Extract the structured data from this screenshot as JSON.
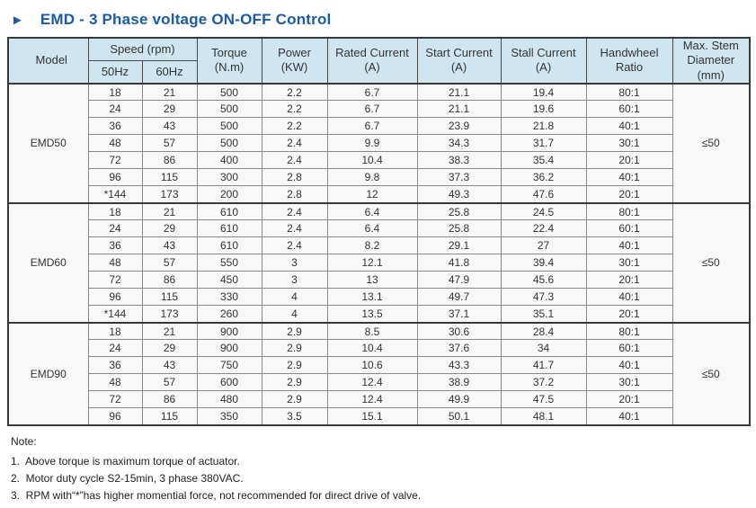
{
  "title": {
    "arrow_icon": "►",
    "text": "EMD - 3 Phase voltage ON-OFF Control"
  },
  "colors": {
    "title_blue": "#1a5ba8",
    "header_bg": "#cfe6f0",
    "border_dark": "#383838",
    "border_light": "#8a8a8a",
    "body_cell_bg": "#f8f8f8"
  },
  "table": {
    "header": {
      "model": "Model",
      "speed_group": "Speed (rpm)",
      "speed_50": "50Hz",
      "speed_60": "60Hz",
      "torque_line1": "Torque",
      "torque_line2": "(N.m)",
      "power_line1": "Power",
      "power_line2": "(KW)",
      "rated_line1": "Rated Current",
      "rated_line2": "(A)",
      "start_line1": "Start Current",
      "start_line2": "(A)",
      "stall_line1": "Stall Current",
      "stall_line2": "(A)",
      "handwheel_line1": "Handwheel",
      "handwheel_line2": "Ratio",
      "maxstem_line1": "Max. Stem",
      "maxstem_line2": "Diameter",
      "maxstem_line3": "(mm)"
    },
    "groups": [
      {
        "model": "EMD50",
        "max_stem": "≤50",
        "rows": [
          [
            "18",
            "21",
            "500",
            "2.2",
            "6.7",
            "21.1",
            "19.4",
            "80:1"
          ],
          [
            "24",
            "29",
            "500",
            "2.2",
            "6.7",
            "21.1",
            "19.6",
            "60:1"
          ],
          [
            "36",
            "43",
            "500",
            "2.2",
            "6.7",
            "23.9",
            "21.8",
            "40:1"
          ],
          [
            "48",
            "57",
            "500",
            "2.4",
            "9.9",
            "34.3",
            "31.7",
            "30:1"
          ],
          [
            "72",
            "86",
            "400",
            "2.4",
            "10.4",
            "38.3",
            "35.4",
            "20:1"
          ],
          [
            "96",
            "115",
            "300",
            "2.8",
            "9.8",
            "37.3",
            "36.2",
            "40:1"
          ],
          [
            "*144",
            "173",
            "200",
            "2.8",
            "12",
            "49.3",
            "47.6",
            "20:1"
          ]
        ]
      },
      {
        "model": "EMD60",
        "max_stem": "≤50",
        "rows": [
          [
            "18",
            "21",
            "610",
            "2.4",
            "6.4",
            "25.8",
            "24.5",
            "80:1"
          ],
          [
            "24",
            "29",
            "610",
            "2.4",
            "6.4",
            "25.8",
            "22.4",
            "60:1"
          ],
          [
            "36",
            "43",
            "610",
            "2.4",
            "8.2",
            "29.1",
            "27",
            "40:1"
          ],
          [
            "48",
            "57",
            "550",
            "3",
            "12.1",
            "41.8",
            "39.4",
            "30:1"
          ],
          [
            "72",
            "86",
            "450",
            "3",
            "13",
            "47.9",
            "45.6",
            "20:1"
          ],
          [
            "96",
            "115",
            "330",
            "4",
            "13.1",
            "49.7",
            "47.3",
            "40:1"
          ],
          [
            "*144",
            "173",
            "260",
            "4",
            "13.5",
            "37.1",
            "35.1",
            "20:1"
          ]
        ]
      },
      {
        "model": "EMD90",
        "max_stem": "≤50",
        "rows": [
          [
            "18",
            "21",
            "900",
            "2.9",
            "8.5",
            "30.6",
            "28.4",
            "80:1"
          ],
          [
            "24",
            "29",
            "900",
            "2.9",
            "10.4",
            "37.6",
            "34",
            "60:1"
          ],
          [
            "36",
            "43",
            "750",
            "2.9",
            "10.6",
            "43.3",
            "41.7",
            "40:1"
          ],
          [
            "48",
            "57",
            "600",
            "2.9",
            "12.4",
            "38.9",
            "37.2",
            "30:1"
          ],
          [
            "72",
            "86",
            "480",
            "2.9",
            "12.4",
            "49.9",
            "47.5",
            "20:1"
          ],
          [
            "96",
            "115",
            "350",
            "3.5",
            "15.1",
            "50.1",
            "48.1",
            "40:1"
          ]
        ]
      }
    ]
  },
  "note": {
    "label": "Note:",
    "items": [
      "1.  Above torque is maximum torque of actuator.",
      "2.  Motor duty cycle S2-15min, 3 phase 380VAC.",
      "3.  RPM with“*”has higher momential force, not recommended for direct drive of valve."
    ]
  }
}
